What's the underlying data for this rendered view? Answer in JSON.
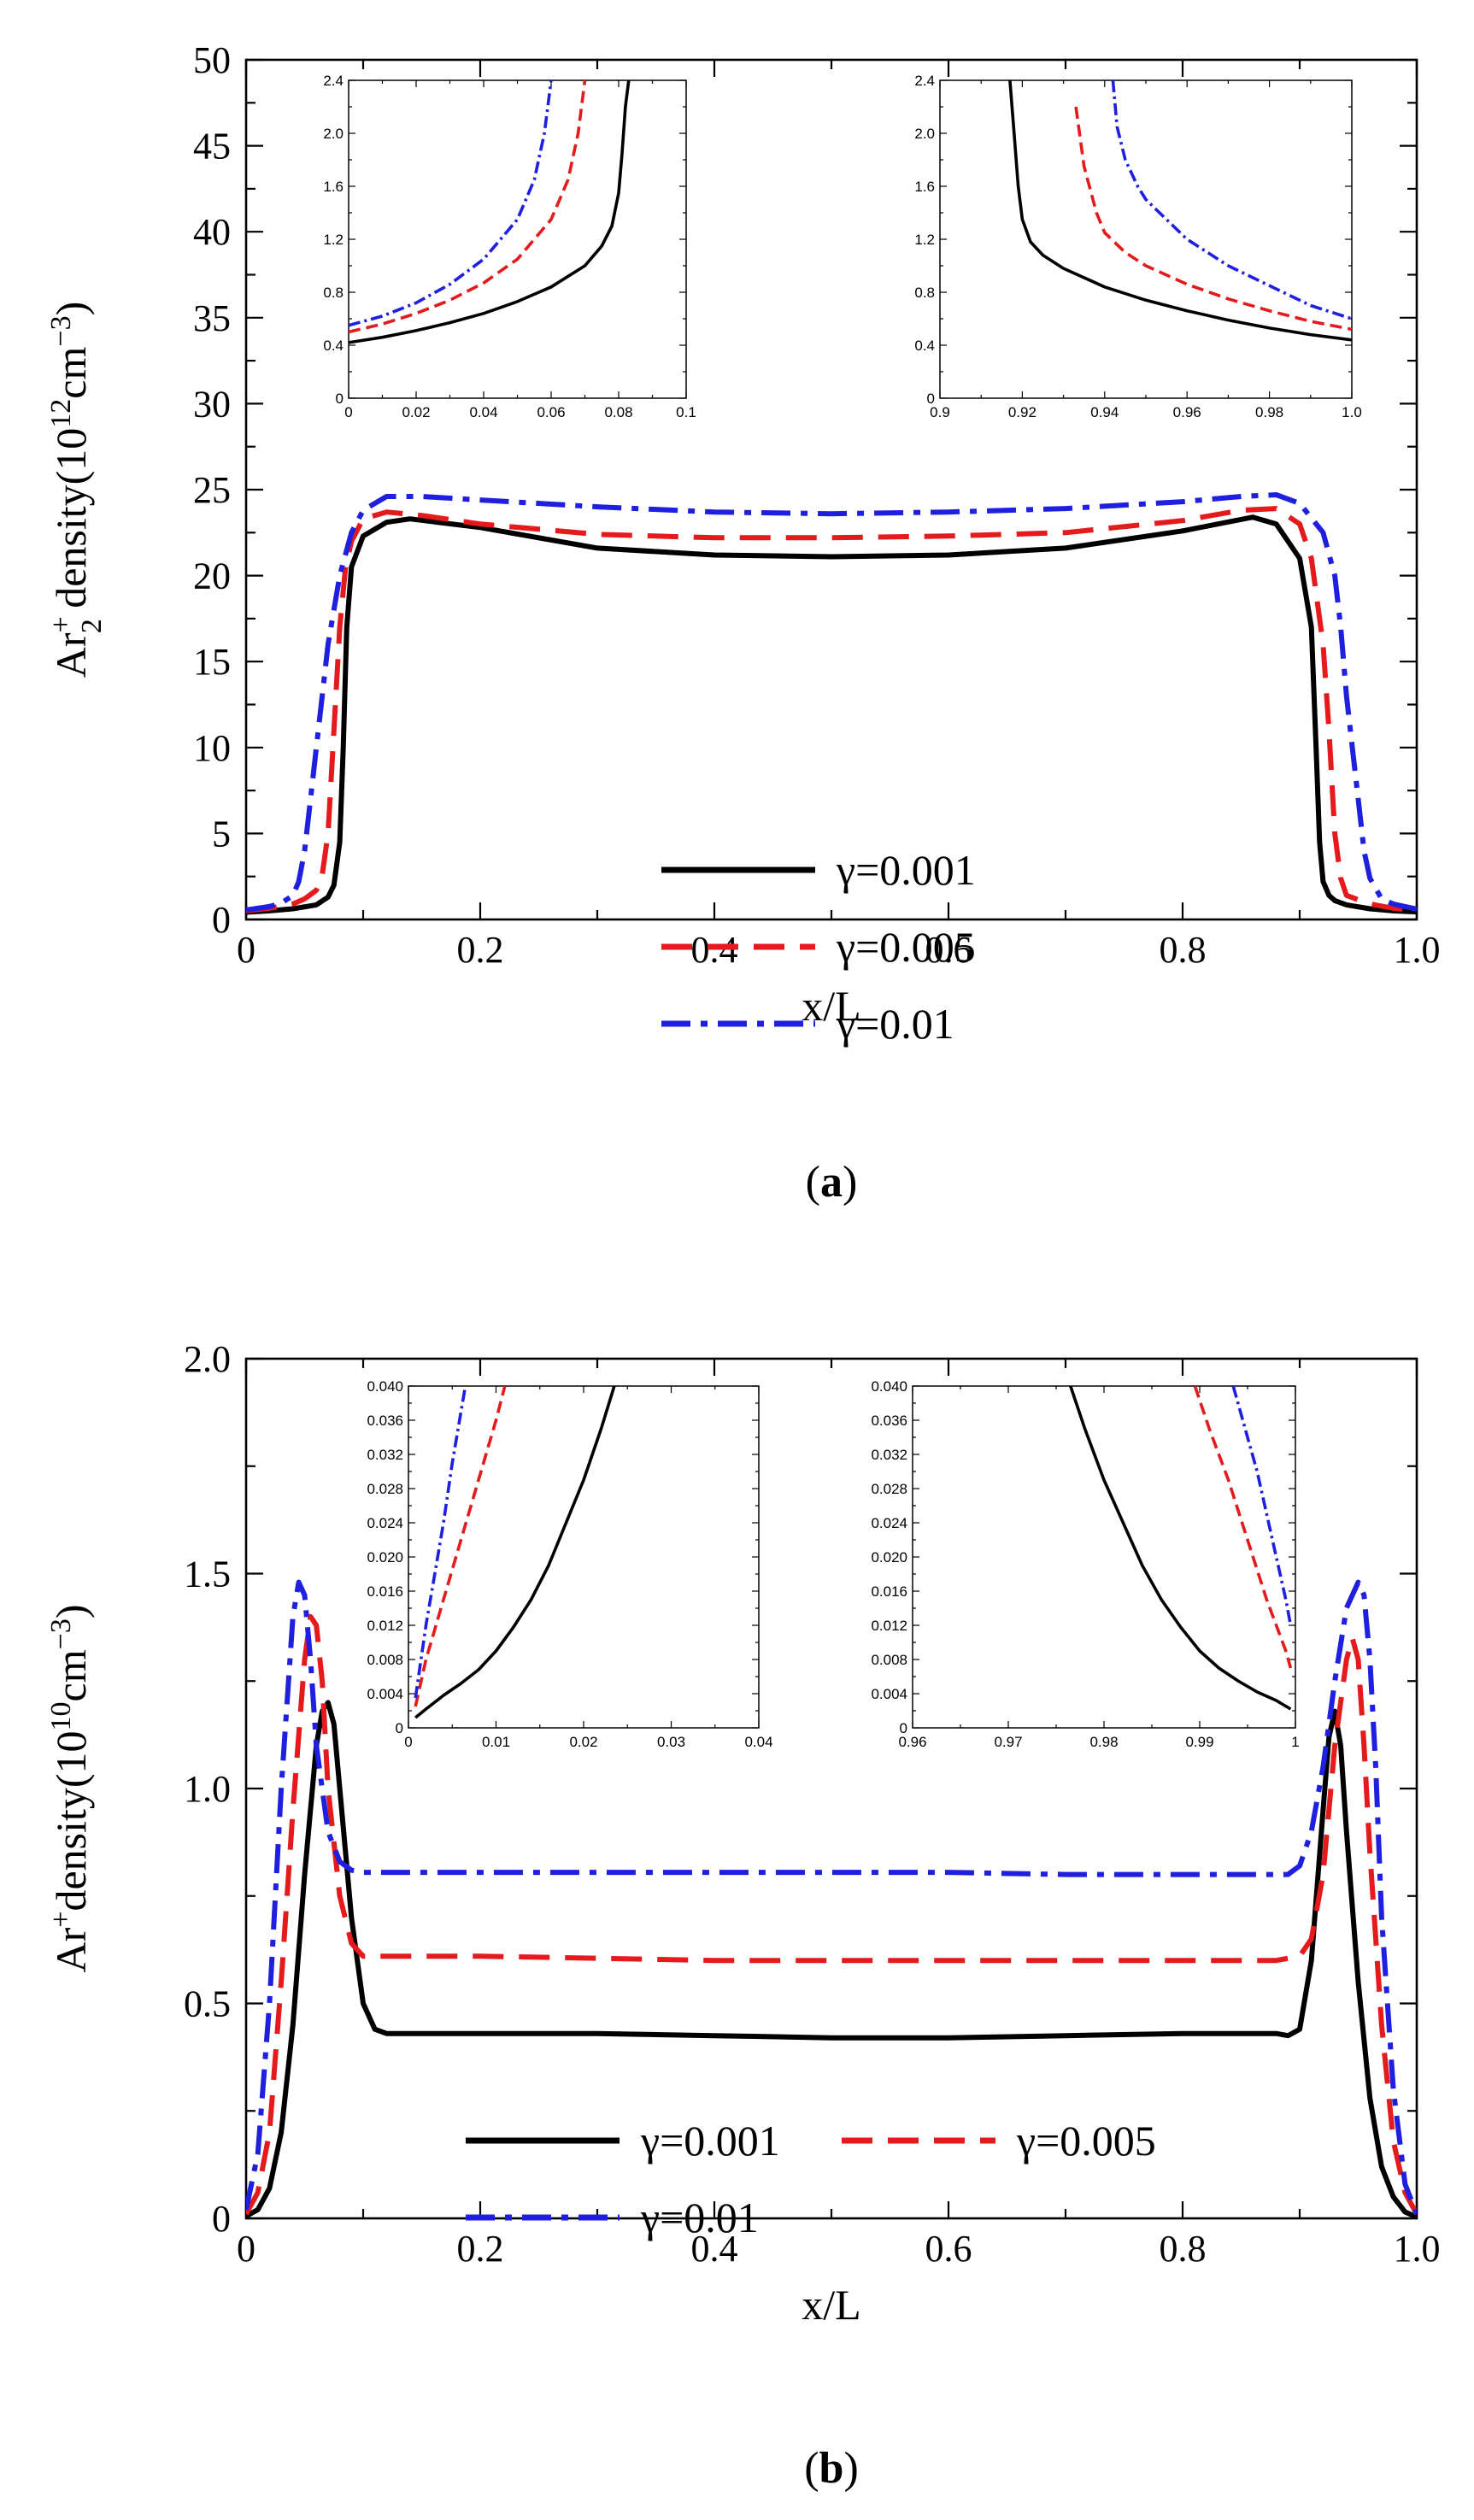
{
  "colors": {
    "s1": "#000000",
    "s2": "#e41a1c",
    "s3": "#1f1fe0"
  },
  "chart_data": [
    {
      "id": "a",
      "type": "line",
      "caption_open": "(",
      "caption_letter": "a",
      "caption_close": ")",
      "xlabel": "x/L",
      "ylabel_parts": {
        "pre": "Ar",
        "sup": "+",
        "sub": "2",
        "mid": " density(10",
        "exp": "12",
        "unit": "cm",
        "exp2": "−3",
        "close": ")"
      },
      "xlim": [
        0,
        1
      ],
      "ylim": [
        0,
        50
      ],
      "xticks": [
        "0",
        "0.2",
        "0.4",
        "0.6",
        "0.8",
        "1.0"
      ],
      "yticks": [
        "0",
        "5",
        "10",
        "15",
        "20",
        "25",
        "30",
        "35",
        "40",
        "45",
        "50"
      ],
      "legend": [
        {
          "label": "γ=0.001",
          "style": "solid"
        },
        {
          "label": "γ=0.005",
          "style": "dash"
        },
        {
          "label": "γ=0.01",
          "style": "dashdot"
        }
      ],
      "series": [
        {
          "name": "γ=0.001",
          "style": "solid",
          "x": [
            0,
            0.02,
            0.04,
            0.06,
            0.07,
            0.075,
            0.08,
            0.083,
            0.086,
            0.09,
            0.1,
            0.12,
            0.14,
            0.2,
            0.3,
            0.4,
            0.5,
            0.6,
            0.7,
            0.8,
            0.86,
            0.88,
            0.9,
            0.91,
            0.914,
            0.917,
            0.92,
            0.925,
            0.93,
            0.94,
            0.96,
            0.98,
            1.0
          ],
          "y": [
            0.42,
            0.5,
            0.62,
            0.85,
            1.3,
            2.0,
            4.5,
            10,
            17,
            20.5,
            22.3,
            23.1,
            23.3,
            22.8,
            21.6,
            21.2,
            21.1,
            21.2,
            21.6,
            22.6,
            23.4,
            23.0,
            21.0,
            17,
            10,
            4.5,
            2.2,
            1.4,
            1.1,
            0.85,
            0.62,
            0.5,
            0.44
          ]
        },
        {
          "name": "γ=0.005",
          "style": "dash",
          "x": [
            0,
            0.02,
            0.04,
            0.05,
            0.06,
            0.065,
            0.07,
            0.075,
            0.08,
            0.085,
            0.09,
            0.1,
            0.12,
            0.15,
            0.2,
            0.3,
            0.4,
            0.5,
            0.6,
            0.7,
            0.8,
            0.85,
            0.88,
            0.9,
            0.91,
            0.92,
            0.925,
            0.93,
            0.935,
            0.94,
            0.96,
            0.98,
            1.0
          ],
          "y": [
            0.5,
            0.65,
            0.9,
            1.2,
            1.7,
            2.6,
            5,
            11,
            17,
            20.5,
            22,
            23.3,
            23.7,
            23.5,
            23.0,
            22.4,
            22.2,
            22.2,
            22.3,
            22.5,
            23.2,
            23.8,
            23.9,
            23.0,
            21,
            16,
            11,
            5,
            2.4,
            1.4,
            0.9,
            0.65,
            0.52
          ]
        },
        {
          "name": "γ=0.01",
          "style": "dashdot",
          "x": [
            0,
            0.02,
            0.03,
            0.04,
            0.045,
            0.05,
            0.055,
            0.06,
            0.065,
            0.07,
            0.08,
            0.09,
            0.1,
            0.12,
            0.15,
            0.2,
            0.3,
            0.4,
            0.5,
            0.6,
            0.7,
            0.8,
            0.85,
            0.88,
            0.9,
            0.92,
            0.93,
            0.935,
            0.94,
            0.945,
            0.95,
            0.955,
            0.96,
            0.97,
            0.98,
            1.0
          ],
          "y": [
            0.55,
            0.75,
            0.95,
            1.4,
            2.2,
            4,
            7,
            10,
            13,
            16,
            20,
            22.5,
            23.8,
            24.6,
            24.6,
            24.4,
            24.0,
            23.7,
            23.6,
            23.7,
            23.9,
            24.3,
            24.6,
            24.7,
            24.2,
            22.5,
            20,
            17,
            13,
            10,
            7,
            4,
            2.4,
            1.2,
            0.9,
            0.6
          ]
        }
      ],
      "insets": [
        {
          "xlim": [
            0,
            0.1
          ],
          "ylim": [
            0,
            2.4
          ],
          "xticks": [
            "0",
            "0.02",
            "0.04",
            "0.06",
            "0.08",
            "0.1"
          ],
          "yticks": [
            "0",
            "0.4",
            "0.8",
            "1.2",
            "1.6",
            "2.0",
            "2.4"
          ],
          "series": [
            {
              "style": "solid",
              "x": [
                0,
                0.01,
                0.02,
                0.03,
                0.04,
                0.05,
                0.06,
                0.07,
                0.075,
                0.078,
                0.08,
                0.081,
                0.082,
                0.083
              ],
              "y": [
                0.42,
                0.46,
                0.51,
                0.57,
                0.64,
                0.73,
                0.84,
                1.0,
                1.15,
                1.3,
                1.55,
                1.85,
                2.2,
                2.4
              ]
            },
            {
              "style": "dash",
              "x": [
                0,
                0.01,
                0.02,
                0.03,
                0.04,
                0.05,
                0.06,
                0.065,
                0.068,
                0.07
              ],
              "y": [
                0.5,
                0.56,
                0.64,
                0.74,
                0.87,
                1.05,
                1.35,
                1.65,
                2.0,
                2.4
              ]
            },
            {
              "style": "dashdot",
              "x": [
                0,
                0.01,
                0.02,
                0.03,
                0.04,
                0.05,
                0.055,
                0.058,
                0.06
              ],
              "y": [
                0.55,
                0.62,
                0.72,
                0.86,
                1.05,
                1.35,
                1.65,
                2.0,
                2.4
              ]
            }
          ]
        },
        {
          "xlim": [
            0.9,
            1.0
          ],
          "ylim": [
            0,
            2.4
          ],
          "xticks": [
            "0.9",
            "0.92",
            "0.94",
            "0.96",
            "0.98",
            "1.0"
          ],
          "yticks": [
            "0",
            "0.4",
            "0.8",
            "1.2",
            "1.6",
            "2.0",
            "2.4"
          ],
          "series": [
            {
              "style": "solid",
              "x": [
                0.917,
                0.918,
                0.919,
                0.92,
                0.922,
                0.925,
                0.93,
                0.94,
                0.95,
                0.96,
                0.97,
                0.98,
                0.99,
                1.0
              ],
              "y": [
                2.4,
                2.0,
                1.6,
                1.35,
                1.18,
                1.08,
                0.98,
                0.84,
                0.74,
                0.66,
                0.59,
                0.53,
                0.48,
                0.44
              ]
            },
            {
              "style": "dash",
              "x": [
                0.933,
                0.935,
                0.938,
                0.94,
                0.945,
                0.95,
                0.96,
                0.97,
                0.98,
                0.99,
                1.0
              ],
              "y": [
                2.2,
                1.75,
                1.4,
                1.25,
                1.1,
                1.0,
                0.86,
                0.75,
                0.66,
                0.58,
                0.52
              ]
            },
            {
              "style": "dashdot",
              "x": [
                0.942,
                0.943,
                0.945,
                0.948,
                0.95,
                0.955,
                0.96,
                0.97,
                0.98,
                0.99,
                1.0
              ],
              "y": [
                2.4,
                2.05,
                1.8,
                1.6,
                1.5,
                1.35,
                1.2,
                1.0,
                0.85,
                0.7,
                0.6
              ]
            }
          ]
        }
      ]
    },
    {
      "id": "b",
      "type": "line",
      "caption_open": "(",
      "caption_letter": "b",
      "caption_close": ")",
      "xlabel": "x/L",
      "ylabel_parts": {
        "pre": "Ar",
        "sup": "+",
        "sub": "",
        "mid": "density(10",
        "exp": "10",
        "unit": "cm",
        "exp2": "−3",
        "close": ")"
      },
      "xlim": [
        0,
        1
      ],
      "ylim": [
        0,
        2.0
      ],
      "xticks": [
        "0",
        "0.2",
        "0.4",
        "0.6",
        "0.8",
        "1.0"
      ],
      "yticks": [
        "0",
        "0.5",
        "1.0",
        "1.5",
        "2.0"
      ],
      "legend": [
        {
          "label": "γ=0.001",
          "style": "solid"
        },
        {
          "label": "γ=0.005",
          "style": "dash"
        },
        {
          "label": "γ=0.01",
          "style": "dashdot"
        }
      ],
      "series": [
        {
          "name": "γ=0.001",
          "style": "solid",
          "x": [
            0,
            0.01,
            0.02,
            0.03,
            0.04,
            0.05,
            0.06,
            0.065,
            0.07,
            0.075,
            0.08,
            0.09,
            0.1,
            0.11,
            0.12,
            0.15,
            0.2,
            0.3,
            0.4,
            0.5,
            0.6,
            0.7,
            0.8,
            0.85,
            0.88,
            0.89,
            0.9,
            0.91,
            0.92,
            0.925,
            0.93,
            0.935,
            0.94,
            0.95,
            0.96,
            0.97,
            0.98,
            0.99,
            1.0
          ],
          "y": [
            0.005,
            0.02,
            0.07,
            0.2,
            0.45,
            0.8,
            1.1,
            1.18,
            1.2,
            1.15,
            1.0,
            0.7,
            0.5,
            0.44,
            0.43,
            0.43,
            0.43,
            0.43,
            0.425,
            0.42,
            0.42,
            0.425,
            0.43,
            0.43,
            0.43,
            0.425,
            0.44,
            0.6,
            0.95,
            1.12,
            1.18,
            1.1,
            0.9,
            0.55,
            0.28,
            0.12,
            0.05,
            0.015,
            0.003
          ]
        },
        {
          "name": "γ=0.005",
          "style": "dash",
          "x": [
            0,
            0.01,
            0.02,
            0.03,
            0.04,
            0.05,
            0.055,
            0.06,
            0.065,
            0.07,
            0.08,
            0.09,
            0.1,
            0.12,
            0.15,
            0.2,
            0.3,
            0.4,
            0.5,
            0.6,
            0.7,
            0.8,
            0.88,
            0.9,
            0.91,
            0.92,
            0.93,
            0.94,
            0.945,
            0.95,
            0.955,
            0.96,
            0.97,
            0.98,
            0.99,
            1.0
          ],
          "y": [
            0.01,
            0.06,
            0.2,
            0.55,
            0.95,
            1.3,
            1.4,
            1.38,
            1.25,
            1.0,
            0.75,
            0.64,
            0.61,
            0.61,
            0.61,
            0.61,
            0.605,
            0.6,
            0.6,
            0.6,
            0.6,
            0.6,
            0.6,
            0.61,
            0.65,
            0.8,
            1.1,
            1.3,
            1.35,
            1.3,
            1.1,
            0.85,
            0.45,
            0.18,
            0.06,
            0.01
          ]
        },
        {
          "name": "γ=0.01",
          "style": "dashdot",
          "x": [
            0,
            0.01,
            0.02,
            0.03,
            0.04,
            0.045,
            0.05,
            0.055,
            0.06,
            0.07,
            0.08,
            0.09,
            0.1,
            0.12,
            0.15,
            0.2,
            0.3,
            0.4,
            0.5,
            0.6,
            0.7,
            0.8,
            0.89,
            0.9,
            0.91,
            0.92,
            0.93,
            0.94,
            0.95,
            0.955,
            0.96,
            0.965,
            0.97,
            0.98,
            0.99,
            1.0
          ],
          "y": [
            0.02,
            0.15,
            0.5,
            1.0,
            1.4,
            1.48,
            1.45,
            1.3,
            1.1,
            0.9,
            0.83,
            0.81,
            0.805,
            0.805,
            0.805,
            0.805,
            0.805,
            0.805,
            0.805,
            0.805,
            0.8,
            0.8,
            0.8,
            0.82,
            0.9,
            1.05,
            1.25,
            1.42,
            1.48,
            1.45,
            1.3,
            1.05,
            0.7,
            0.3,
            0.08,
            0.01
          ]
        }
      ],
      "insets": [
        {
          "xlim": [
            0,
            0.04
          ],
          "ylim": [
            0,
            0.04
          ],
          "xticks": [
            "0",
            "0.01",
            "0.02",
            "0.03",
            "0.04"
          ],
          "yticks": [
            "0",
            "0.004",
            "0.008",
            "0.012",
            "0.016",
            "0.020",
            "0.024",
            "0.028",
            "0.032",
            "0.036",
            "0.040"
          ],
          "series": [
            {
              "style": "solid",
              "x": [
                0.0008,
                0.002,
                0.003,
                0.004,
                0.006,
                0.008,
                0.01,
                0.012,
                0.014,
                0.016,
                0.018,
                0.02,
                0.022,
                0.0235
              ],
              "y": [
                0.0012,
                0.0022,
                0.003,
                0.0038,
                0.0052,
                0.0068,
                0.009,
                0.0118,
                0.015,
                0.019,
                0.024,
                0.029,
                0.035,
                0.04
              ]
            },
            {
              "style": "dash",
              "x": [
                0.0008,
                0.002,
                0.003,
                0.004,
                0.006,
                0.008,
                0.01,
                0.011
              ],
              "y": [
                0.0025,
                0.008,
                0.0115,
                0.015,
                0.022,
                0.029,
                0.036,
                0.04
              ]
            },
            {
              "style": "dashdot",
              "x": [
                0.0008,
                0.002,
                0.003,
                0.004,
                0.005,
                0.006,
                0.0065
              ],
              "y": [
                0.0035,
                0.012,
                0.018,
                0.024,
                0.031,
                0.037,
                0.04
              ]
            }
          ]
        },
        {
          "xlim": [
            0.96,
            1.0
          ],
          "ylim": [
            0,
            0.04
          ],
          "xticks": [
            "0.96",
            "0.97",
            "0.98",
            "0.99",
            "1"
          ],
          "yticks": [
            "0",
            "0.004",
            "0.008",
            "0.012",
            "0.016",
            "0.020",
            "0.024",
            "0.028",
            "0.032",
            "0.036",
            "0.040"
          ],
          "series": [
            {
              "style": "solid",
              "x": [
                0.9765,
                0.978,
                0.98,
                0.982,
                0.984,
                0.986,
                0.988,
                0.99,
                0.992,
                0.994,
                0.996,
                0.998,
                0.9995
              ],
              "y": [
                0.04,
                0.035,
                0.029,
                0.024,
                0.019,
                0.015,
                0.0118,
                0.009,
                0.007,
                0.0055,
                0.0042,
                0.0032,
                0.0022
              ]
            },
            {
              "style": "dash",
              "x": [
                0.9895,
                0.991,
                0.993,
                0.995,
                0.997,
                0.999,
                0.9995
              ],
              "y": [
                0.04,
                0.035,
                0.029,
                0.022,
                0.015,
                0.009,
                0.007
              ]
            },
            {
              "style": "dashdot",
              "x": [
                0.9935,
                0.995,
                0.996,
                0.997,
                0.998,
                0.999,
                0.9995
              ],
              "y": [
                0.04,
                0.034,
                0.03,
                0.025,
                0.02,
                0.015,
                0.012
              ]
            }
          ]
        }
      ]
    }
  ]
}
